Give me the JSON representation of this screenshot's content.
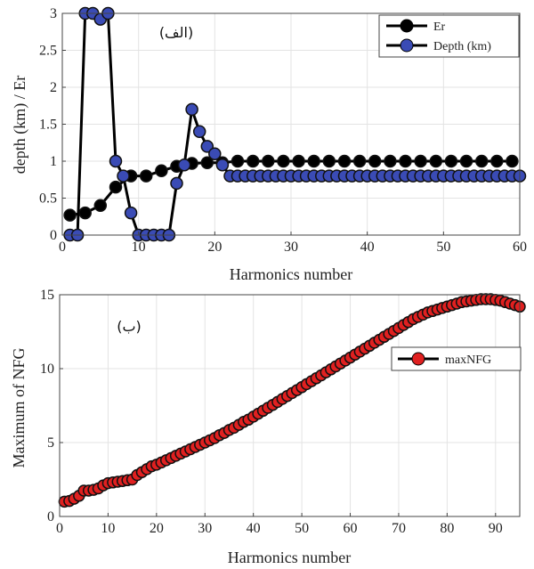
{
  "chart_data": [
    {
      "type": "line",
      "panel_label": "(الف)",
      "xlabel": "Harmonics number",
      "ylabel": "depth (km)  / Er",
      "xlim": [
        0,
        60
      ],
      "ylim": [
        0,
        3
      ],
      "xticks": [
        0,
        10,
        20,
        30,
        40,
        50,
        60
      ],
      "yticks": [
        0,
        0.5,
        1,
        1.5,
        2,
        2.5,
        3
      ],
      "grid": true,
      "legend": "top-right",
      "series": [
        {
          "name": "Er",
          "color": "#000000",
          "marker_color": "#000000",
          "x": [
            1,
            3,
            5,
            7,
            9,
            11,
            13,
            15,
            17,
            19,
            21,
            23,
            25,
            27,
            29,
            31,
            33,
            35,
            37,
            39,
            41,
            43,
            45,
            47,
            49,
            51,
            53,
            55,
            57,
            59
          ],
          "y": [
            0.27,
            0.3,
            0.4,
            0.65,
            0.8,
            0.8,
            0.87,
            0.93,
            0.97,
            0.98,
            0.98,
            1,
            1,
            1,
            1,
            1,
            1,
            1,
            1,
            1,
            1,
            1,
            1,
            1,
            1,
            1,
            1,
            1,
            1,
            1
          ]
        },
        {
          "name": "Depth (km)",
          "color": "#000000",
          "marker_color": "#3a4bb5",
          "x": [
            1,
            2,
            3,
            4,
            5,
            6,
            7,
            8,
            9,
            10,
            11,
            12,
            13,
            14,
            15,
            16,
            17,
            18,
            19,
            20,
            21,
            22,
            23,
            24,
            25,
            26,
            27,
            28,
            29,
            30,
            31,
            32,
            33,
            34,
            35,
            36,
            37,
            38,
            39,
            40,
            41,
            42,
            43,
            44,
            45,
            46,
            47,
            48,
            49,
            50,
            51,
            52,
            53,
            54,
            55,
            56,
            57,
            58,
            59,
            60
          ],
          "y": [
            0,
            0,
            3,
            3,
            2.92,
            3,
            1,
            0.8,
            0.3,
            0,
            0,
            0,
            0,
            0,
            0.7,
            0.95,
            1.7,
            1.4,
            1.2,
            1.1,
            0.95,
            0.8,
            0.8,
            0.8,
            0.8,
            0.8,
            0.8,
            0.8,
            0.8,
            0.8,
            0.8,
            0.8,
            0.8,
            0.8,
            0.8,
            0.8,
            0.8,
            0.8,
            0.8,
            0.8,
            0.8,
            0.8,
            0.8,
            0.8,
            0.8,
            0.8,
            0.8,
            0.8,
            0.8,
            0.8,
            0.8,
            0.8,
            0.8,
            0.8,
            0.8,
            0.8,
            0.8,
            0.8,
            0.8,
            0.8
          ]
        }
      ]
    },
    {
      "type": "line",
      "panel_label": "(ب)",
      "xlabel": "Harmonics number",
      "ylabel": "Maximum of NFG",
      "xlim": [
        0,
        95
      ],
      "ylim": [
        0,
        15
      ],
      "xticks": [
        0,
        10,
        20,
        30,
        40,
        50,
        60,
        70,
        80,
        90
      ],
      "yticks": [
        0,
        5,
        10,
        15
      ],
      "grid": true,
      "legend": "right",
      "series": [
        {
          "name": "maxNFG",
          "color": "#000000",
          "marker_color": "#e02020",
          "x": [
            1,
            2,
            3,
            4,
            5,
            6,
            7,
            8,
            9,
            10,
            11,
            12,
            13,
            14,
            15,
            16,
            17,
            18,
            19,
            20,
            21,
            22,
            23,
            24,
            25,
            26,
            27,
            28,
            29,
            30,
            31,
            32,
            33,
            34,
            35,
            36,
            37,
            38,
            39,
            40,
            41,
            42,
            43,
            44,
            45,
            46,
            47,
            48,
            49,
            50,
            51,
            52,
            53,
            54,
            55,
            56,
            57,
            58,
            59,
            60,
            61,
            62,
            63,
            64,
            65,
            66,
            67,
            68,
            69,
            70,
            71,
            72,
            73,
            74,
            75,
            76,
            77,
            78,
            79,
            80,
            81,
            82,
            83,
            84,
            85,
            86,
            87,
            88,
            89,
            90,
            91,
            92,
            93,
            94,
            95
          ],
          "y": [
            1.0,
            1.05,
            1.2,
            1.4,
            1.75,
            1.75,
            1.8,
            1.9,
            2.1,
            2.25,
            2.3,
            2.35,
            2.4,
            2.45,
            2.5,
            2.8,
            3.0,
            3.2,
            3.4,
            3.5,
            3.65,
            3.8,
            3.95,
            4.1,
            4.25,
            4.4,
            4.55,
            4.7,
            4.85,
            5.0,
            5.15,
            5.3,
            5.5,
            5.65,
            5.85,
            6.0,
            6.2,
            6.4,
            6.55,
            6.75,
            6.95,
            7.15,
            7.35,
            7.55,
            7.75,
            7.95,
            8.15,
            8.35,
            8.55,
            8.75,
            8.95,
            9.15,
            9.35,
            9.55,
            9.75,
            9.95,
            10.15,
            10.35,
            10.55,
            10.75,
            10.95,
            11.15,
            11.35,
            11.55,
            11.75,
            11.95,
            12.15,
            12.35,
            12.55,
            12.75,
            12.95,
            13.15,
            13.35,
            13.5,
            13.65,
            13.8,
            13.9,
            14.0,
            14.1,
            14.2,
            14.3,
            14.4,
            14.5,
            14.55,
            14.6,
            14.65,
            14.7,
            14.7,
            14.7,
            14.65,
            14.6,
            14.5,
            14.4,
            14.3,
            14.2
          ]
        }
      ]
    }
  ]
}
